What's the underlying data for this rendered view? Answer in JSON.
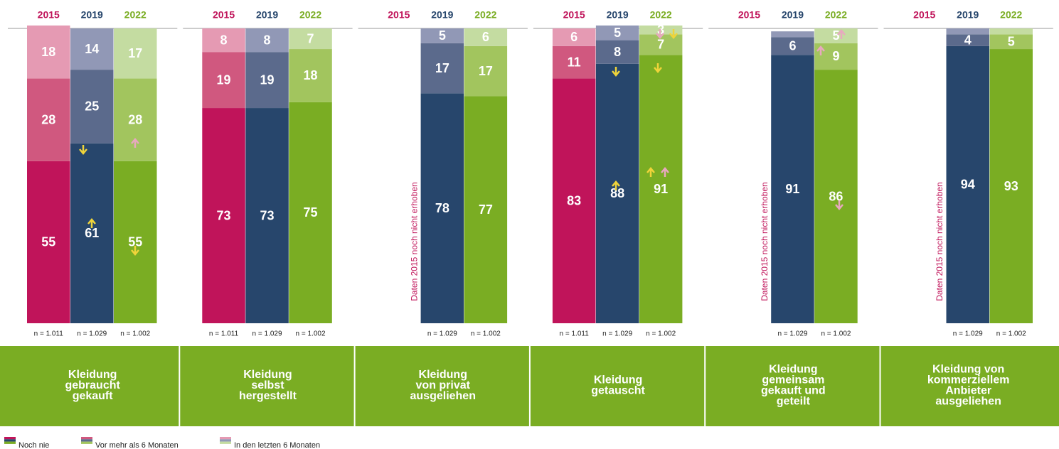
{
  "chart_data": {
    "type": "stacked-bar",
    "ylim": [
      0,
      100
    ],
    "colors": [
      [
        "#c0145a",
        "#d0587f",
        "#e59ab3"
      ],
      [
        "#27466c",
        "#5b6a8c",
        "#9198b6"
      ],
      [
        "#7aad23",
        "#a2c55e",
        "#c4dca1"
      ]
    ],
    "legend": [
      "Noch nie",
      "Vor mehr als 6 Monaten",
      "In den letzten 6 Monaten"
    ],
    "groups": [
      {
        "years": [
          "2015",
          "2019",
          "2022"
        ],
        "label": [
          "Kleidung",
          "gebraucht",
          "gekauft"
        ],
        "note": null,
        "bars": [
          {
            "n": "n = 1.011",
            "values": [
              55,
              28,
              18
            ]
          },
          {
            "n": "n = 1.029",
            "values": [
              61,
              25,
              14
            ]
          },
          {
            "n": "n = 1.002",
            "values": [
              55,
              28,
              17
            ]
          }
        ]
      },
      {
        "years": [
          "2015",
          "2019",
          "2022"
        ],
        "label": [
          "Kleidung",
          "selbst",
          "hergestellt"
        ],
        "note": null,
        "bars": [
          {
            "n": "n = 1.011",
            "values": [
              73,
              19,
              8
            ]
          },
          {
            "n": "n = 1.029",
            "values": [
              73,
              19,
              8
            ]
          },
          {
            "n": "n = 1.002",
            "values": [
              75,
              18,
              7
            ]
          }
        ]
      },
      {
        "years": [
          "2015",
          "2019",
          "2022"
        ],
        "label": [
          "Kleidung",
          "von privat",
          "ausgeliehen"
        ],
        "note": "Daten 2015 noch nicht erhoben",
        "bars": [
          null,
          {
            "n": "n = 1.029",
            "values": [
              78,
              17,
              5
            ]
          },
          {
            "n": "n = 1.002",
            "values": [
              77,
              17,
              6
            ]
          }
        ]
      },
      {
        "years": [
          "2015",
          "2019",
          "2022"
        ],
        "label": [
          "Kleidung",
          "getauscht"
        ],
        "note": null,
        "bars": [
          {
            "n": "n = 1.011",
            "values": [
              83,
              11,
              6
            ]
          },
          {
            "n": "n = 1.029",
            "values": [
              88,
              8,
              5
            ]
          },
          {
            "n": "n = 1.002",
            "values": [
              91,
              7,
              3
            ]
          }
        ]
      },
      {
        "years": [
          "2015",
          "2019",
          "2022"
        ],
        "label": [
          "Kleidung",
          "gemeinsam",
          "gekauft und",
          "geteilt"
        ],
        "note": "Daten 2015 noch nicht erhoben",
        "bars": [
          null,
          {
            "n": "n = 1.029",
            "values": [
              91,
              6,
              2
            ]
          },
          {
            "n": "n = 1.002",
            "values": [
              86,
              9,
              5
            ]
          }
        ]
      },
      {
        "years": [
          "2015",
          "2019",
          "2022"
        ],
        "label": [
          "Kleidung von",
          "kommerziellem",
          "Anbieter",
          "ausgeliehen"
        ],
        "note": "Daten 2015 noch nicht erhoben",
        "bars": [
          null,
          {
            "n": "n = 1.029",
            "values": [
              94,
              4,
              2
            ]
          },
          {
            "n": "n = 1.002",
            "values": [
              93,
              5,
              2
            ]
          }
        ]
      }
    ]
  }
}
